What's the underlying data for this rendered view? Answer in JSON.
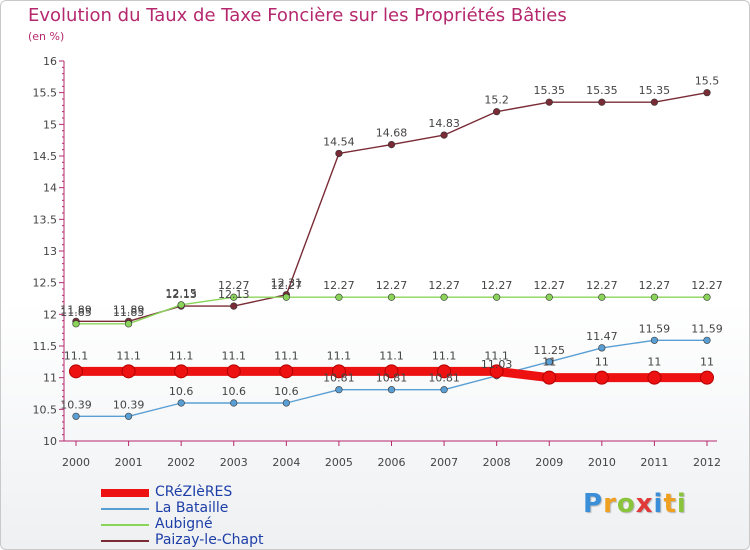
{
  "chart_data": {
    "type": "line",
    "title": "Evolution du Taux de Taxe Foncière sur les Propriétés Bâties",
    "unit_label": "(en %)",
    "xlabel": "",
    "ylabel": "",
    "ylim": [
      10,
      16
    ],
    "y_ticks": [
      "10",
      "10.5",
      "11",
      "11.5",
      "12",
      "12.5",
      "13",
      "13.5",
      "14",
      "14.5",
      "15",
      "15.5",
      "16"
    ],
    "categories": [
      "2000",
      "2001",
      "2002",
      "2003",
      "2004",
      "2005",
      "2006",
      "2007",
      "2008",
      "2009",
      "2010",
      "2011",
      "2012"
    ],
    "grid": false,
    "legend_position": "bottom-left",
    "series": [
      {
        "name": "CRéZIèRES",
        "color": "#ee1111",
        "values": [
          11.1,
          11.1,
          11.1,
          11.1,
          11.1,
          11.1,
          11.1,
          11.1,
          11.1,
          11,
          11,
          11,
          11
        ],
        "labels": [
          "11.1",
          "11.1",
          "11.1",
          "11.1",
          "11.1",
          "11.1",
          "11.1",
          "11.1",
          "11.1",
          "11",
          "11",
          "11",
          "11"
        ]
      },
      {
        "name": "La Bataille",
        "color": "#5a9fd4",
        "values": [
          10.39,
          10.39,
          10.6,
          10.6,
          10.6,
          10.81,
          10.81,
          10.81,
          11.03,
          11.25,
          11.47,
          11.59,
          11.59
        ],
        "labels": [
          "10.39",
          "10.39",
          "10.6",
          "10.6",
          "10.6",
          "10.81",
          "10.81",
          "10.81",
          "11.03",
          "11.25",
          "11.47",
          "11.59",
          "11.59"
        ]
      },
      {
        "name": "Aubigné",
        "color": "#8bd45a",
        "values": [
          11.85,
          11.85,
          12.15,
          12.27,
          12.27,
          12.27,
          12.27,
          12.27,
          12.27,
          12.27,
          12.27,
          12.27,
          12.27
        ],
        "labels": [
          "11.85",
          "11.85",
          "12.15",
          "12.27",
          "12.27",
          "12.27",
          "12.27",
          "12.27",
          "12.27",
          "12.27",
          "12.27",
          "12.27",
          "12.27"
        ]
      },
      {
        "name": "Paizay-le-Chapt",
        "color": "#7a2c36",
        "values": [
          11.89,
          11.89,
          12.13,
          12.13,
          12.31,
          14.54,
          14.68,
          14.83,
          15.2,
          15.35,
          15.35,
          15.35,
          15.5
        ],
        "labels": [
          "11.89",
          "11.89",
          "12.13",
          "12.13",
          "12.31",
          "14.54",
          "14.68",
          "14.83",
          "15.2",
          "15.35",
          "15.35",
          "15.35",
          "15.5"
        ]
      }
    ]
  },
  "brand": {
    "letters": [
      "P",
      "r",
      "o",
      "x",
      "i",
      "t",
      "i"
    ],
    "colors": [
      "#3a8fd8",
      "#f0a020",
      "#8ac43a",
      "#e03a3a",
      "#3a8fd8",
      "#f0a020",
      "#8ac43a"
    ]
  }
}
